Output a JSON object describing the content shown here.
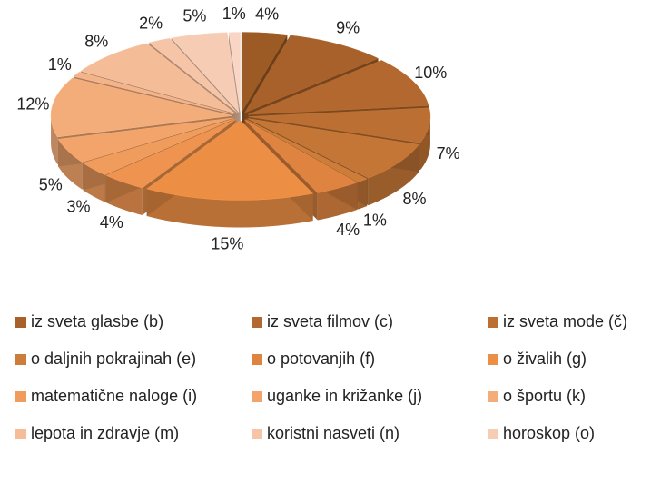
{
  "chart_data": {
    "type": "pie",
    "categories": [
      null,
      "iz sveta glasbe (b)",
      "iz sveta filmov (c)",
      "iz sveta mode (č)",
      null,
      "o daljnih pokrajinah (e)",
      "o potovanjih (f)",
      "o živalih (g)",
      null,
      "matematične naloge  (i)",
      "uganke in križanke (j)",
      "o športu (k)",
      null,
      "lepota in zdravje (m)",
      "koristni nasveti (n)",
      "horoskop (o)",
      null
    ],
    "values": [
      4,
      9,
      10,
      7,
      8,
      1,
      4,
      15,
      4,
      3,
      5,
      12,
      1,
      8,
      2,
      5,
      1
    ],
    "value_labels": [
      "4%",
      "9%",
      "10%",
      "7%",
      "8%",
      "1%",
      "4%",
      "15%",
      "4%",
      "3%",
      "5%",
      "12%",
      "1%",
      "8%",
      "2%",
      "5%",
      "1%"
    ],
    "colors": [
      "#9c5a24",
      "#a8612a",
      "#b2682e",
      "#bb6f32",
      "#c47637",
      "#cd7d3a",
      "#de8440",
      "#ec8f45",
      "#ee9450",
      "#f09c5c",
      "#f2a46b",
      "#f3ad7b",
      "#f4b48a",
      "#f5bc98",
      "#f6c4a6",
      "#f7ccb4",
      "#f8d5c4"
    ]
  }
}
